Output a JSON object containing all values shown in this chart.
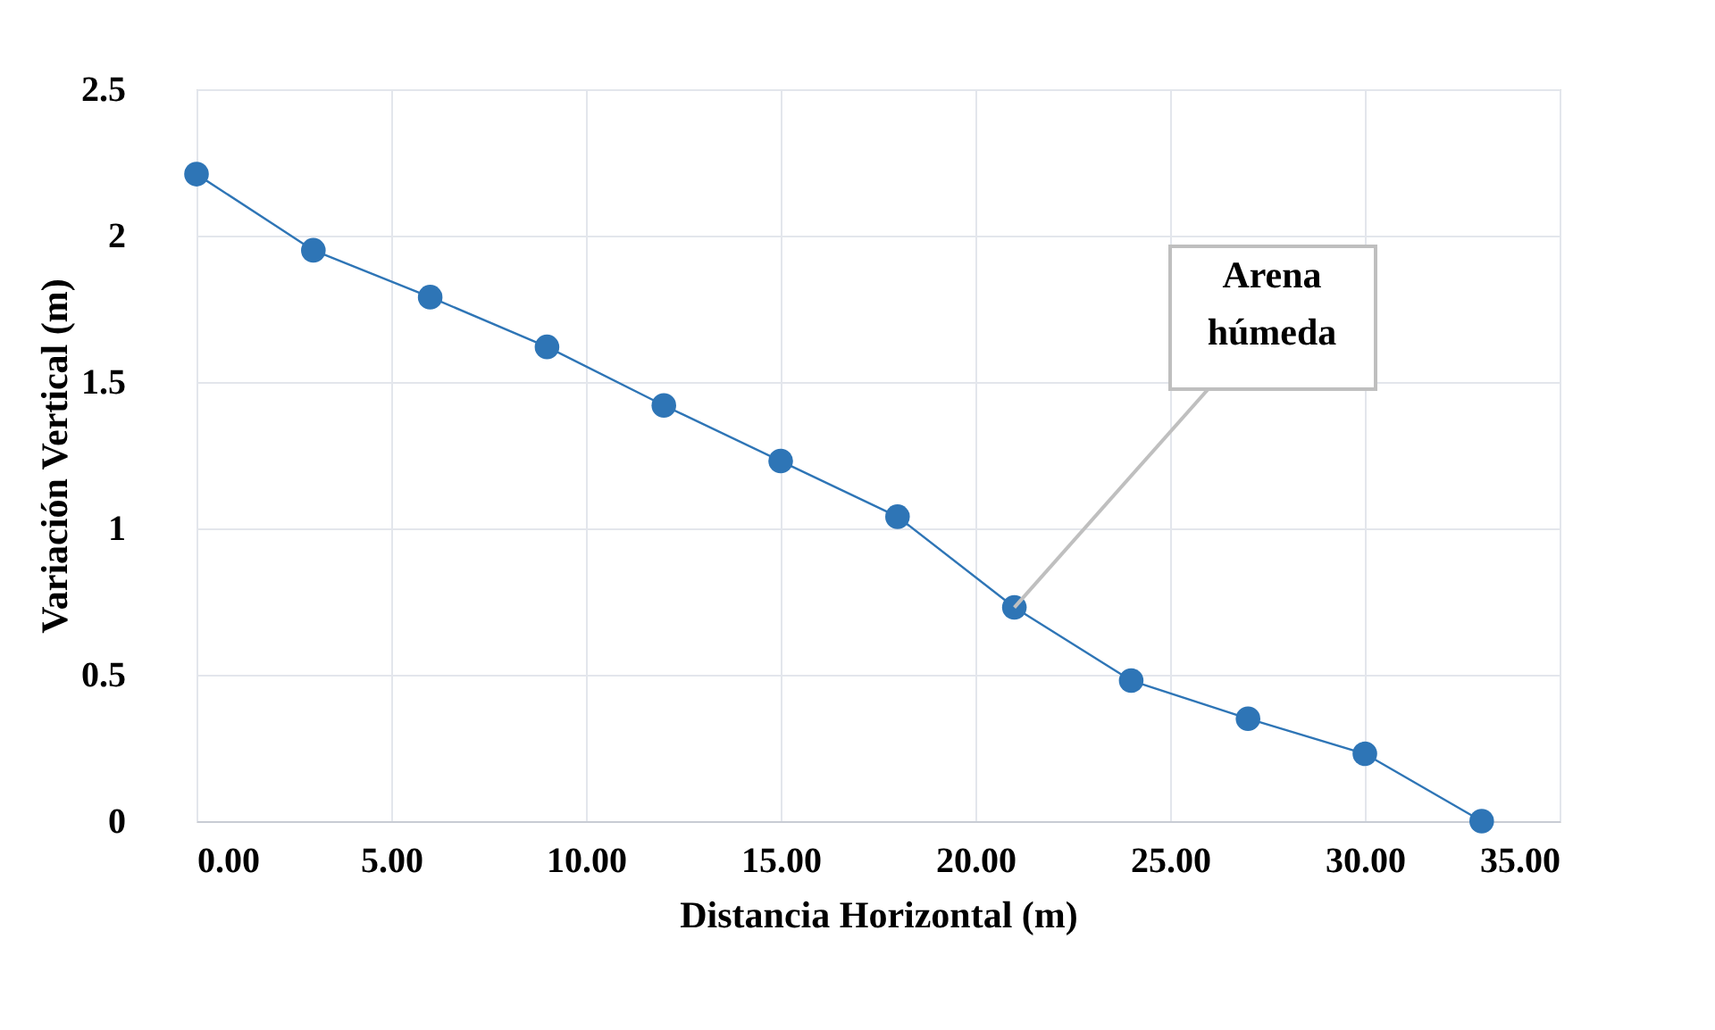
{
  "chart_data": {
    "type": "line",
    "xlabel": "Distancia Horizontal (m)",
    "ylabel": "Variación Vertical  (m)",
    "x": [
      0,
      3,
      6,
      9,
      12,
      15,
      18,
      21,
      24,
      27,
      30,
      33
    ],
    "series": [
      {
        "color": "#2e75b6",
        "values": [
          2.21,
          1.95,
          1.79,
          1.62,
          1.42,
          1.23,
          1.04,
          0.73,
          0.48,
          0.35,
          0.23,
          0.0
        ]
      }
    ],
    "xlim": [
      0,
      35
    ],
    "xticks": [
      {
        "value": 0,
        "label": "0.00"
      },
      {
        "value": 5,
        "label": "5.00"
      },
      {
        "value": 10,
        "label": "10.00"
      },
      {
        "value": 15,
        "label": "15.00"
      },
      {
        "value": 20,
        "label": "20.00"
      },
      {
        "value": 25,
        "label": "25.00"
      },
      {
        "value": 30,
        "label": "30.00"
      },
      {
        "value": 35,
        "label": "35.00"
      }
    ],
    "ylim": [
      0,
      2.5
    ],
    "yticks": [
      0,
      0.5,
      1,
      1.5,
      2,
      2.5
    ],
    "annotations": [
      {
        "text": "Arena\nhúmeda",
        "x": 21,
        "y": 0.73
      }
    ],
    "grid": true,
    "marker": "circle",
    "line_style": "solid"
  }
}
